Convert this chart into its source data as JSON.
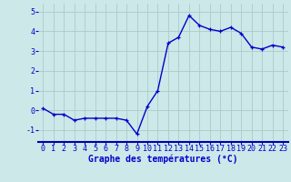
{
  "x": [
    0,
    1,
    2,
    3,
    4,
    5,
    6,
    7,
    8,
    9,
    10,
    11,
    12,
    13,
    14,
    15,
    16,
    17,
    18,
    19,
    20,
    21,
    22,
    23
  ],
  "y": [
    0.1,
    -0.2,
    -0.2,
    -0.5,
    -0.4,
    -0.4,
    -0.4,
    -0.4,
    -0.5,
    -1.2,
    0.2,
    1.0,
    3.4,
    3.7,
    4.8,
    4.3,
    4.1,
    4.0,
    4.2,
    3.9,
    3.2,
    3.1,
    3.3,
    3.2
  ],
  "line_color": "#0000cc",
  "marker": "+",
  "marker_color": "#0000cc",
  "bg_color": "#cce8e8",
  "grid_color": "#aacccc",
  "xlabel": "Graphe des températures (°C)",
  "xlabel_color": "#0000cc",
  "tick_color": "#0000cc",
  "ylim": [
    -1.6,
    5.4
  ],
  "yticks": [
    -1,
    0,
    1,
    2,
    3,
    4,
    5
  ],
  "xlim": [
    -0.5,
    23.5
  ],
  "xticks": [
    0,
    1,
    2,
    3,
    4,
    5,
    6,
    7,
    8,
    9,
    10,
    11,
    12,
    13,
    14,
    15,
    16,
    17,
    18,
    19,
    20,
    21,
    22,
    23
  ],
  "xlabel_fontsize": 7.0,
  "tick_fontsize": 6.0,
  "line_width": 1.0
}
